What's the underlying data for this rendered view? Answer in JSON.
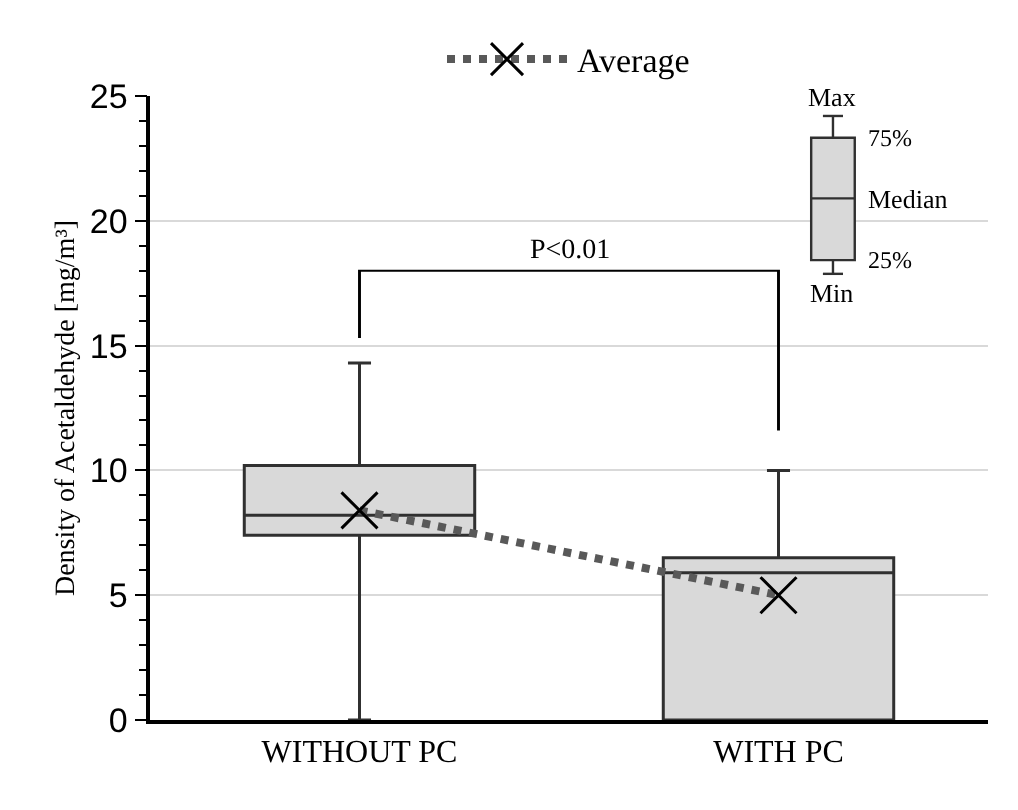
{
  "chart_data": {
    "type": "box",
    "categories": [
      "WITHOUT PC",
      "WITH PC"
    ],
    "ylabel": "Density of Acetaldehyde [mg/m³]",
    "series": [
      {
        "color": "#d9d9d9",
        "boxes": [
          {
            "low": 0,
            "q1": 7.4,
            "median": 8.2,
            "q3": 10.2,
            "high": 14.3
          },
          {
            "low": 0,
            "q1": 0,
            "median": 5.9,
            "q3": 6.5,
            "high": 10.0
          }
        ]
      },
      {
        "name": "Average",
        "type": "line",
        "color": "#595959",
        "values": [
          8.4,
          5.0
        ],
        "marker": "cross",
        "line_style": "dotted"
      }
    ],
    "ylim": [
      0,
      25
    ],
    "yticks": [
      0,
      5,
      10,
      15,
      20,
      25
    ],
    "grid": "y",
    "legend": "top",
    "annotations": [
      "P<0.01",
      "Max",
      "75%",
      "Median",
      "25%",
      "Min"
    ]
  }
}
